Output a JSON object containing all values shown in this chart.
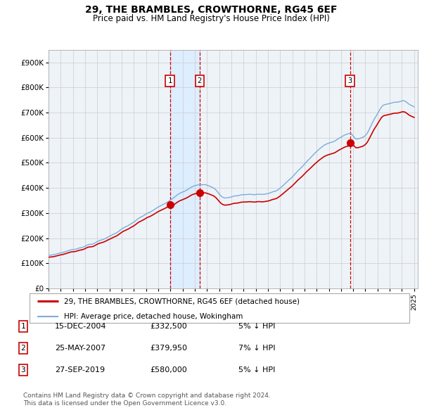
{
  "title": "29, THE BRAMBLES, CROWTHORNE, RG45 6EF",
  "subtitle": "Price paid vs. HM Land Registry's House Price Index (HPI)",
  "ylabel_ticks": [
    "£0",
    "£100K",
    "£200K",
    "£300K",
    "£400K",
    "£500K",
    "£600K",
    "£700K",
    "£800K",
    "£900K"
  ],
  "ytick_values": [
    0,
    100000,
    200000,
    300000,
    400000,
    500000,
    600000,
    700000,
    800000,
    900000
  ],
  "ylim": [
    0,
    950000
  ],
  "xlim_start": 1995.0,
  "xlim_end": 2025.3,
  "xticks": [
    1995,
    1996,
    1997,
    1998,
    1999,
    2000,
    2001,
    2002,
    2003,
    2004,
    2005,
    2006,
    2007,
    2008,
    2009,
    2010,
    2011,
    2012,
    2013,
    2014,
    2015,
    2016,
    2017,
    2018,
    2019,
    2020,
    2021,
    2022,
    2023,
    2024,
    2025
  ],
  "sale_dates": [
    2004.96,
    2007.4,
    2019.74
  ],
  "sale_prices": [
    332500,
    379950,
    580000
  ],
  "sale_labels": [
    "1",
    "2",
    "3"
  ],
  "red_line_color": "#cc0000",
  "blue_line_color": "#7aadda",
  "shade_color": "#ddeeff",
  "grid_color": "#cccccc",
  "dashed_line_color": "#cc0000",
  "legend_label_red": "29, THE BRAMBLES, CROWTHORNE, RG45 6EF (detached house)",
  "legend_label_blue": "HPI: Average price, detached house, Wokingham",
  "table_data": [
    [
      "1",
      "15-DEC-2004",
      "£332,500",
      "5% ↓ HPI"
    ],
    [
      "2",
      "25-MAY-2007",
      "£379,950",
      "7% ↓ HPI"
    ],
    [
      "3",
      "27-SEP-2019",
      "£580,000",
      "5% ↓ HPI"
    ]
  ],
  "footnote": "Contains HM Land Registry data © Crown copyright and database right 2024.\nThis data is licensed under the Open Government Licence v3.0.",
  "bg_color": "#ffffff",
  "plot_bg_color": "#eef3f8"
}
